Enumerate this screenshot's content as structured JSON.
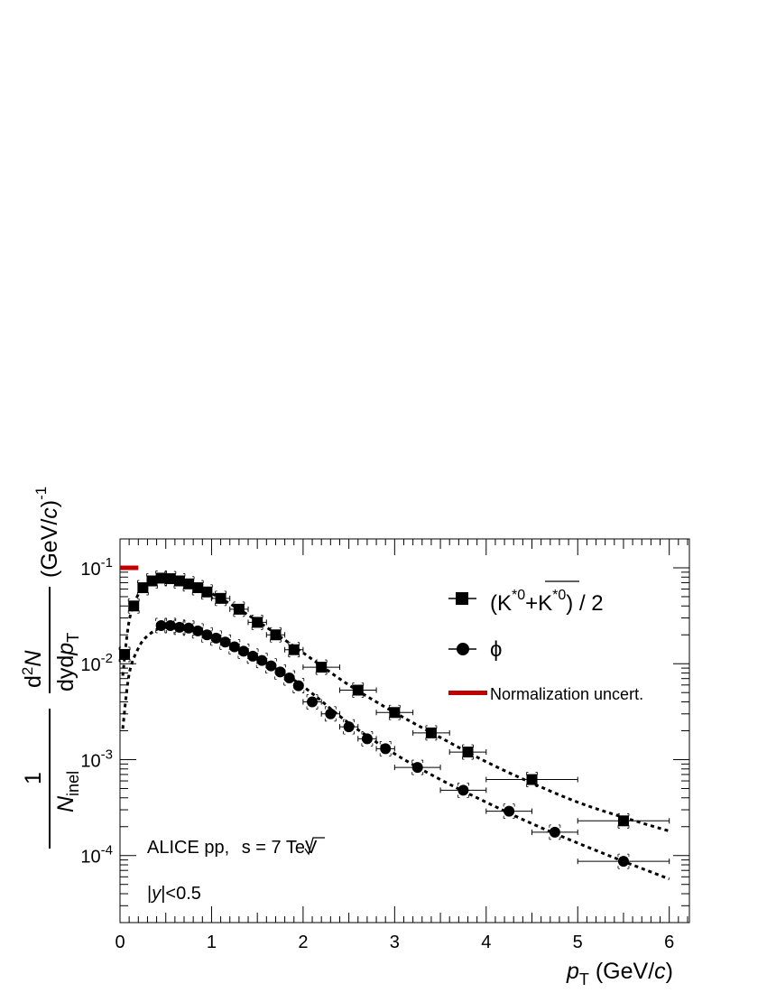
{
  "chart_data": {
    "type": "scatter",
    "title": "",
    "xlabel": "pT (GeV/c)",
    "ylabel": "1/Ninel d2N/dydpT (GeV/c)-1",
    "x_scale": "linear",
    "y_scale": "log",
    "xlim": [
      0,
      6.22
    ],
    "ylim": [
      2e-05,
      0.2
    ],
    "x_ticks": [
      0,
      1,
      2,
      3,
      4,
      5,
      6
    ],
    "x_tick_labels": [
      "0",
      "1",
      "2",
      "3",
      "4",
      "5",
      "6"
    ],
    "y_ticks": [
      0.0001,
      0.001,
      0.01,
      0.1
    ],
    "y_tick_labels": [
      {
        "base": "10",
        "exp": "-4"
      },
      {
        "base": "10",
        "exp": "-3"
      },
      {
        "base": "10",
        "exp": "-2"
      },
      {
        "base": "10",
        "exp": "-1"
      }
    ],
    "legend_position": "top-right",
    "series": [
      {
        "name": "(K*0+K*0) / 2",
        "marker": "square",
        "color": "#000000",
        "points": [
          {
            "x": 0.05,
            "y": 0.0125,
            "xerr": 0.05
          },
          {
            "x": 0.15,
            "y": 0.04,
            "xerr": 0.05
          },
          {
            "x": 0.25,
            "y": 0.062,
            "xerr": 0.05
          },
          {
            "x": 0.35,
            "y": 0.073,
            "xerr": 0.05
          },
          {
            "x": 0.45,
            "y": 0.078,
            "xerr": 0.05
          },
          {
            "x": 0.55,
            "y": 0.077,
            "xerr": 0.05
          },
          {
            "x": 0.65,
            "y": 0.073,
            "xerr": 0.05
          },
          {
            "x": 0.75,
            "y": 0.068,
            "xerr": 0.05
          },
          {
            "x": 0.85,
            "y": 0.062,
            "xerr": 0.05
          },
          {
            "x": 0.95,
            "y": 0.056,
            "xerr": 0.05
          },
          {
            "x": 1.1,
            "y": 0.048,
            "xerr": 0.1
          },
          {
            "x": 1.3,
            "y": 0.037,
            "xerr": 0.1
          },
          {
            "x": 1.5,
            "y": 0.027,
            "xerr": 0.1
          },
          {
            "x": 1.7,
            "y": 0.02,
            "xerr": 0.1
          },
          {
            "x": 1.9,
            "y": 0.014,
            "xerr": 0.1
          },
          {
            "x": 2.2,
            "y": 0.0092,
            "xerr": 0.2
          },
          {
            "x": 2.6,
            "y": 0.0053,
            "xerr": 0.2
          },
          {
            "x": 3.0,
            "y": 0.0031,
            "xerr": 0.2
          },
          {
            "x": 3.4,
            "y": 0.0019,
            "xerr": 0.2
          },
          {
            "x": 3.8,
            "y": 0.0012,
            "xerr": 0.2
          },
          {
            "x": 4.5,
            "y": 0.00062,
            "xerr": 0.5
          },
          {
            "x": 5.5,
            "y": 0.00023,
            "xerr": 0.5
          }
        ]
      },
      {
        "name": "ϕ",
        "marker": "circle",
        "color": "#000000",
        "points": [
          {
            "x": 0.45,
            "y": 0.025,
            "xerr": 0.05
          },
          {
            "x": 0.55,
            "y": 0.025,
            "xerr": 0.05
          },
          {
            "x": 0.65,
            "y": 0.024,
            "xerr": 0.05
          },
          {
            "x": 0.75,
            "y": 0.0235,
            "xerr": 0.05
          },
          {
            "x": 0.85,
            "y": 0.022,
            "xerr": 0.05
          },
          {
            "x": 0.95,
            "y": 0.02,
            "xerr": 0.05
          },
          {
            "x": 1.05,
            "y": 0.0185,
            "xerr": 0.05
          },
          {
            "x": 1.15,
            "y": 0.0168,
            "xerr": 0.05
          },
          {
            "x": 1.25,
            "y": 0.015,
            "xerr": 0.05
          },
          {
            "x": 1.35,
            "y": 0.0135,
            "xerr": 0.05
          },
          {
            "x": 1.45,
            "y": 0.012,
            "xerr": 0.05
          },
          {
            "x": 1.55,
            "y": 0.0108,
            "xerr": 0.05
          },
          {
            "x": 1.65,
            "y": 0.0095,
            "xerr": 0.05
          },
          {
            "x": 1.75,
            "y": 0.0082,
            "xerr": 0.05
          },
          {
            "x": 1.85,
            "y": 0.0071,
            "xerr": 0.05
          },
          {
            "x": 1.95,
            "y": 0.0059,
            "xerr": 0.05
          },
          {
            "x": 2.1,
            "y": 0.004,
            "xerr": 0.1
          },
          {
            "x": 2.3,
            "y": 0.003,
            "xerr": 0.1
          },
          {
            "x": 2.5,
            "y": 0.0022,
            "xerr": 0.1
          },
          {
            "x": 2.7,
            "y": 0.00165,
            "xerr": 0.1
          },
          {
            "x": 2.9,
            "y": 0.0013,
            "xerr": 0.1
          },
          {
            "x": 3.25,
            "y": 0.00083,
            "xerr": 0.25
          },
          {
            "x": 3.75,
            "y": 0.00048,
            "xerr": 0.25
          },
          {
            "x": 4.25,
            "y": 0.00029,
            "xerr": 0.25
          },
          {
            "x": 4.75,
            "y": 0.000175,
            "xerr": 0.25
          },
          {
            "x": 5.5,
            "y": 8.7e-05,
            "xerr": 0.5
          }
        ]
      }
    ],
    "fits": [
      {
        "series": "(K*0+K*0) / 2",
        "style": "dotted",
        "points": [
          [
            0.03,
            0.0075
          ],
          [
            0.1,
            0.028
          ],
          [
            0.2,
            0.053
          ],
          [
            0.3,
            0.068
          ],
          [
            0.45,
            0.076
          ],
          [
            0.6,
            0.075
          ],
          [
            0.8,
            0.065
          ],
          [
            1.0,
            0.054
          ],
          [
            1.3,
            0.037
          ],
          [
            1.6,
            0.024
          ],
          [
            2.0,
            0.013
          ],
          [
            2.5,
            0.006
          ],
          [
            3.0,
            0.0031
          ],
          [
            3.5,
            0.0017
          ],
          [
            4.0,
            0.00095
          ],
          [
            4.5,
            0.00057
          ],
          [
            5.0,
            0.00036
          ],
          [
            5.5,
            0.00025
          ],
          [
            6.0,
            0.00018
          ]
        ]
      },
      {
        "series": "ϕ",
        "style": "dotted",
        "points": [
          [
            0.03,
            0.0021
          ],
          [
            0.1,
            0.0078
          ],
          [
            0.2,
            0.0145
          ],
          [
            0.3,
            0.0195
          ],
          [
            0.45,
            0.0238
          ],
          [
            0.6,
            0.0245
          ],
          [
            0.8,
            0.0225
          ],
          [
            1.0,
            0.0195
          ],
          [
            1.3,
            0.0143
          ],
          [
            1.6,
            0.0102
          ],
          [
            2.0,
            0.0058
          ],
          [
            2.5,
            0.0024
          ],
          [
            3.0,
            0.00115
          ],
          [
            3.5,
            0.00062
          ],
          [
            4.0,
            0.00036
          ],
          [
            4.5,
            0.000215
          ],
          [
            5.0,
            0.000135
          ],
          [
            5.5,
            8.7e-05
          ],
          [
            6.0,
            5.7e-05
          ]
        ]
      }
    ],
    "normalization_band": {
      "x": [
        0.0,
        0.2
      ],
      "y": 0.1,
      "color": "#c00000"
    },
    "legend": {
      "entries": [
        {
          "marker": "square",
          "label_parts": {
            "open": "(K",
            "sup1": "*0",
            "plus": "+",
            "kbar": "K",
            "sup2": "*0",
            "close": ") / 2"
          }
        },
        {
          "marker": "circle",
          "label": "ϕ"
        },
        {
          "marker": "line",
          "color": "#c00000",
          "label": "Normalization uncert."
        }
      ]
    },
    "annotations": {
      "experiment": {
        "prefix": "ALICE pp, ",
        "sqrt": "s",
        "suffix": " = 7 TeV"
      },
      "rapidity": {
        "open": "|",
        "var": "y",
        "close": "|<0.5"
      }
    },
    "axis_title_parts": {
      "x": {
        "var": "p",
        "sub": "T",
        "unit": " (GeV/",
        "unit_var": "c",
        "close": ")"
      },
      "y": {
        "one": "1",
        "N": "N",
        "inel": "inel",
        "d2": "d",
        "two": "2",
        "N2": "N",
        "dyd": "dyd",
        "p": "p",
        "T": "T",
        "unit": "(GeV/",
        "c": "c",
        "close": ")",
        "minus1": "-1"
      }
    }
  }
}
